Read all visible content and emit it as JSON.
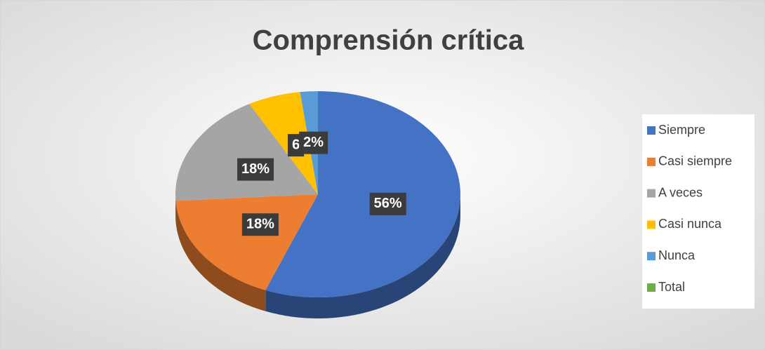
{
  "chart_data": {
    "type": "pie",
    "title": "Comprensión crítica",
    "categories": [
      "Siempre",
      "Casi siempre",
      "A veces",
      "Casi nunca",
      "Nunca",
      "Total"
    ],
    "values": [
      56,
      18,
      18,
      6,
      2,
      0
    ],
    "value_labels": [
      "56%",
      "18%",
      "18%",
      "6",
      "2%",
      null
    ],
    "colors": [
      "#4472c4",
      "#ed7d31",
      "#a5a5a5",
      "#ffc000",
      "#5b9bd5",
      "#70ad47"
    ],
    "legend": "right"
  }
}
